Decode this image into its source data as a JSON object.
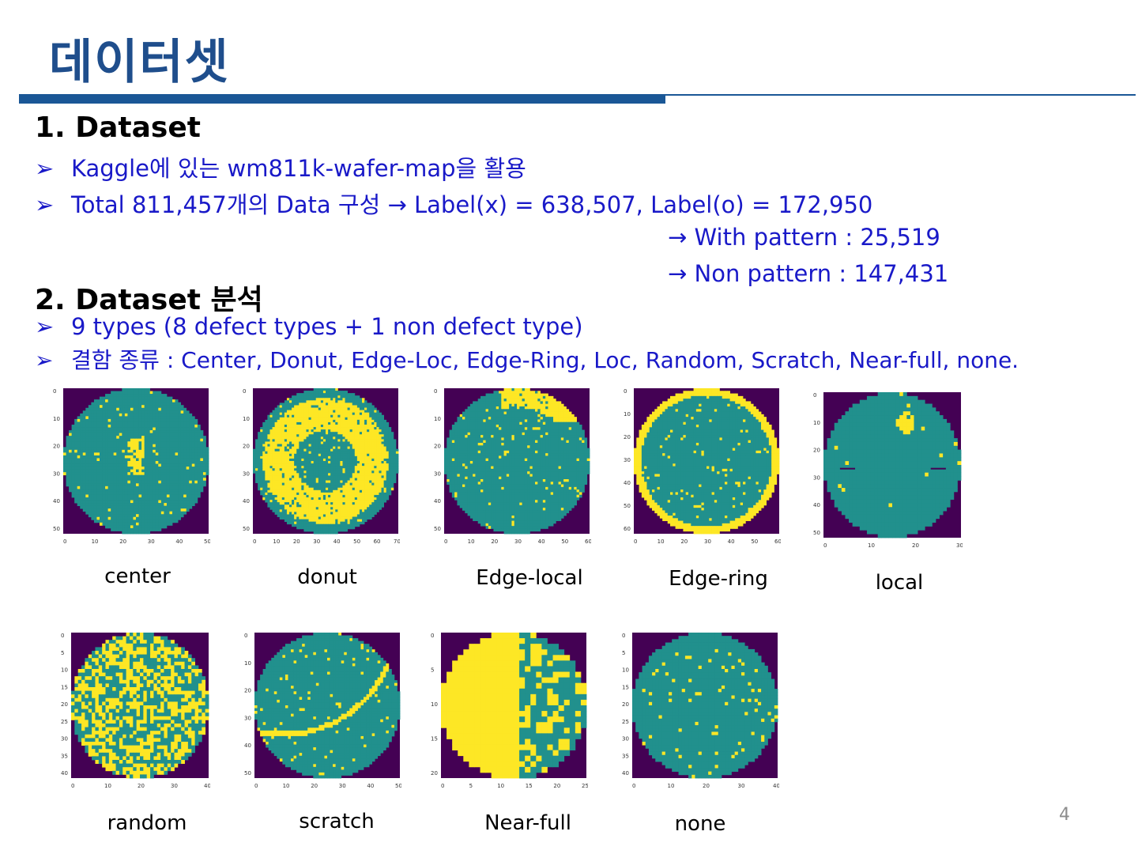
{
  "title": "데이터셋",
  "section1": {
    "heading": "1. Dataset",
    "bullets": [
      "Kaggle에 있는 wm811k-wafer-map을 활용",
      "Total 811,457개의 Data 구성 → Label(x) = 638,507, Label(o) = 172,950"
    ],
    "sublines": [
      "→ With pattern : 25,519",
      "→ Non pattern : 147,431"
    ]
  },
  "section2": {
    "heading": "2. Dataset 분석",
    "bullets": [
      "9 types (8 defect types + 1 non defect type)",
      "결함 종류 : Center, Donut, Edge-Loc, Edge-Ring, Loc, Random, Scratch, Near-full, none."
    ]
  },
  "wafer_maps": [
    {
      "caption": "center",
      "pattern": "center",
      "xticks": [
        "0",
        "10",
        "20",
        "30",
        "40",
        "50"
      ],
      "yticks": [
        "0",
        "10",
        "20",
        "30",
        "40",
        "50"
      ]
    },
    {
      "caption": "donut",
      "pattern": "donut",
      "xticks": [
        "0",
        "10",
        "20",
        "30",
        "40",
        "50",
        "60",
        "70"
      ],
      "yticks": [
        "0",
        "10",
        "20",
        "30",
        "40",
        "50"
      ]
    },
    {
      "caption": "Edge-local",
      "pattern": "edge-local",
      "xticks": [
        "0",
        "10",
        "20",
        "30",
        "40",
        "50",
        "60"
      ],
      "yticks": [
        "0",
        "10",
        "20",
        "30",
        "40",
        "50"
      ]
    },
    {
      "caption": "Edge-ring",
      "pattern": "edge-ring",
      "xticks": [
        "0",
        "10",
        "20",
        "30",
        "40",
        "50",
        "60"
      ],
      "yticks": [
        "0",
        "10",
        "20",
        "30",
        "40",
        "50",
        "60"
      ]
    },
    {
      "caption": "local",
      "pattern": "local",
      "xticks": [
        "0",
        "10",
        "20",
        "30"
      ],
      "yticks": [
        "0",
        "10",
        "20",
        "30",
        "40",
        "50"
      ]
    },
    {
      "caption": "random",
      "pattern": "random",
      "xticks": [
        "0",
        "10",
        "20",
        "30",
        "40"
      ],
      "yticks": [
        "0",
        "5",
        "10",
        "15",
        "20",
        "25",
        "30",
        "35",
        "40"
      ]
    },
    {
      "caption": "scratch",
      "pattern": "scratch",
      "xticks": [
        "0",
        "10",
        "20",
        "30",
        "40",
        "50"
      ],
      "yticks": [
        "0",
        "10",
        "20",
        "30",
        "40",
        "50"
      ]
    },
    {
      "caption": "Near-full",
      "pattern": "near-full",
      "xticks": [
        "0",
        "5",
        "10",
        "15",
        "20",
        "25"
      ],
      "yticks": [
        "0",
        "5",
        "10",
        "15",
        "20"
      ]
    },
    {
      "caption": "none",
      "pattern": "none",
      "xticks": [
        "0",
        "10",
        "20",
        "30",
        "40"
      ],
      "yticks": [
        "0",
        "5",
        "10",
        "15",
        "20",
        "25",
        "30",
        "35",
        "40"
      ]
    }
  ],
  "colors": {
    "background": "#440154",
    "wafer": "#21908d",
    "defect": "#fde725",
    "title": "#1f4e8c",
    "bullet_text": "#1919c8"
  },
  "page_number": "4"
}
